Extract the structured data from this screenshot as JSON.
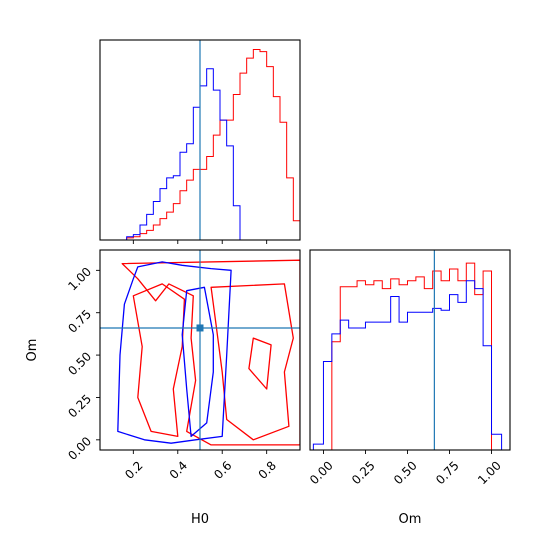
{
  "colors": {
    "series_a": "#ff0000",
    "series_b": "#0000ff",
    "truth": "#1f77b4"
  },
  "chart_data": [
    {
      "type": "histogram",
      "panel": "H0 marginal",
      "xlim": [
        0.05,
        0.95
      ],
      "xticks": [
        0.2,
        0.4,
        0.6,
        0.8
      ],
      "show_xtick_labels": false,
      "show_yticks": false,
      "truth_x": 0.5,
      "bin_edges": [
        0.05,
        0.08,
        0.11,
        0.14,
        0.17,
        0.2,
        0.23,
        0.26,
        0.29,
        0.32,
        0.35,
        0.38,
        0.41,
        0.44,
        0.47,
        0.5,
        0.53,
        0.56,
        0.59,
        0.62,
        0.65,
        0.68,
        0.71,
        0.74,
        0.77,
        0.8,
        0.83,
        0.86,
        0.89,
        0.92,
        0.95
      ],
      "series": [
        {
          "color": "#ff0000",
          "counts": [
            0,
            0,
            0,
            0,
            0.01,
            0.015,
            0.03,
            0.045,
            0.07,
            0.1,
            0.13,
            0.17,
            0.23,
            0.28,
            0.33,
            0.33,
            0.39,
            0.49,
            0.56,
            0.56,
            0.68,
            0.78,
            0.85,
            0.89,
            0.88,
            0.81,
            0.67,
            0.55,
            0.29,
            0.09
          ]
        },
        {
          "color": "#0000ff",
          "counts": [
            0,
            0,
            0,
            0,
            0.015,
            0.025,
            0.07,
            0.12,
            0.18,
            0.24,
            0.29,
            0.3,
            0.41,
            0.45,
            0.62,
            0.72,
            0.8,
            0.7,
            0.56,
            0.44,
            0.16,
            0,
            0,
            0,
            0,
            0,
            0,
            0,
            0,
            0
          ]
        }
      ]
    },
    {
      "type": "contour",
      "panel": "H0 vs Om",
      "xlabel": "H0",
      "ylabel": "Om",
      "xlim": [
        0.05,
        0.95
      ],
      "ylim": [
        -0.06,
        1.12
      ],
      "xticks": [
        "0.2",
        "0.4",
        "0.6",
        "0.8"
      ],
      "yticks": [
        "0.00",
        "0.25",
        "0.50",
        "0.75",
        "1.00"
      ],
      "truth": {
        "x": 0.5,
        "y": 0.66
      },
      "series": [
        {
          "color": "#ff0000",
          "levels": [
            [
              [
                0.15,
                1.04
              ],
              [
                0.95,
                1.06
              ],
              [
                0.95,
                -0.03
              ],
              [
                0.55,
                -0.03
              ],
              [
                0.44,
                0.05
              ],
              [
                0.48,
                0.35
              ],
              [
                0.46,
                0.6
              ],
              [
                0.47,
                0.85
              ],
              [
                0.36,
                0.92
              ],
              [
                0.3,
                0.82
              ],
              [
                0.22,
                0.95
              ]
            ],
            [
              [
                0.55,
                0.9
              ],
              [
                0.88,
                0.92
              ],
              [
                0.92,
                0.6
              ],
              [
                0.88,
                0.4
              ],
              [
                0.9,
                0.08
              ],
              [
                0.74,
                0.0
              ],
              [
                0.62,
                0.12
              ],
              [
                0.6,
                0.4
              ],
              [
                0.57,
                0.7
              ]
            ],
            [
              [
                0.2,
                0.85
              ],
              [
                0.33,
                0.92
              ],
              [
                0.43,
                0.83
              ],
              [
                0.42,
                0.55
              ],
              [
                0.38,
                0.3
              ],
              [
                0.4,
                0.02
              ],
              [
                0.28,
                0.05
              ],
              [
                0.22,
                0.25
              ],
              [
                0.24,
                0.55
              ]
            ],
            [
              [
                0.74,
                0.6
              ],
              [
                0.82,
                0.56
              ],
              [
                0.8,
                0.3
              ],
              [
                0.72,
                0.42
              ]
            ]
          ]
        },
        {
          "color": "#0000ff",
          "levels": [
            [
              [
                0.22,
                1.02
              ],
              [
                0.33,
                1.05
              ],
              [
                0.42,
                1.03
              ],
              [
                0.55,
                1.01
              ],
              [
                0.64,
                1.0
              ],
              [
                0.62,
                0.5
              ],
              [
                0.6,
                0.02
              ],
              [
                0.48,
                0.0
              ],
              [
                0.37,
                -0.02
              ],
              [
                0.25,
                0.0
              ],
              [
                0.13,
                0.05
              ],
              [
                0.14,
                0.5
              ],
              [
                0.16,
                0.8
              ],
              [
                0.2,
                0.95
              ]
            ],
            [
              [
                0.44,
                0.88
              ],
              [
                0.52,
                0.9
              ],
              [
                0.56,
                0.62
              ],
              [
                0.56,
                0.4
              ],
              [
                0.53,
                0.1
              ],
              [
                0.46,
                0.02
              ],
              [
                0.44,
                0.3
              ],
              [
                0.42,
                0.62
              ]
            ]
          ]
        }
      ]
    },
    {
      "type": "histogram",
      "panel": "Om marginal",
      "xlabel": "Om",
      "xlim": [
        -0.08,
        1.11
      ],
      "xticks": [
        "0.00",
        "0.25",
        "0.50",
        "0.75",
        "1.00"
      ],
      "show_yticks": false,
      "truth_x": 0.66,
      "bin_edges": [
        -0.06,
        0.0,
        0.05,
        0.1,
        0.15,
        0.2,
        0.25,
        0.3,
        0.35,
        0.4,
        0.45,
        0.5,
        0.55,
        0.6,
        0.65,
        0.7,
        0.75,
        0.8,
        0.85,
        0.9,
        0.95,
        1.0,
        1.06
      ],
      "series": [
        {
          "color": "#ff0000",
          "counts": [
            0,
            0,
            0.55,
            0.83,
            0.83,
            0.86,
            0.84,
            0.86,
            0.82,
            0.87,
            0.84,
            0.86,
            0.88,
            0.82,
            0.91,
            0.86,
            0.92,
            0.86,
            0.95,
            0.79,
            0.91,
            0
          ]
        },
        {
          "color": "#0000ff",
          "counts": [
            0.03,
            0.45,
            0.59,
            0.66,
            0.62,
            0.62,
            0.65,
            0.65,
            0.65,
            0.78,
            0.65,
            0.7,
            0.7,
            0.7,
            0.72,
            0.71,
            0.79,
            0.75,
            0.86,
            0.82,
            0.53,
            0.08
          ]
        }
      ]
    }
  ]
}
